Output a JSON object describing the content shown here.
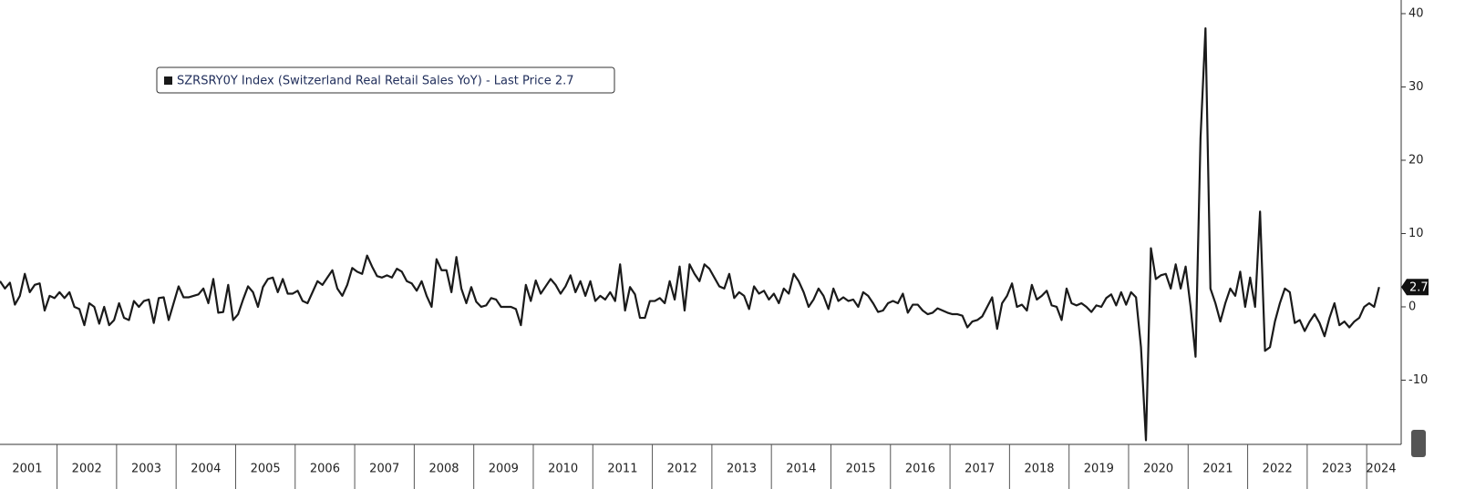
{
  "chart_data": {
    "type": "line",
    "categories": [
      "2001",
      null,
      null,
      null,
      null,
      null,
      null,
      null,
      null,
      null,
      null,
      null,
      "2002",
      null,
      null,
      null,
      null,
      null,
      null,
      null,
      null,
      null,
      null,
      null,
      "2003",
      null,
      null,
      null,
      null,
      null,
      null,
      null,
      null,
      null,
      null,
      null,
      "2004",
      null,
      null,
      null,
      null,
      null,
      null,
      null,
      null,
      null,
      null,
      null,
      "2005",
      null,
      null,
      null,
      null,
      null,
      null,
      null,
      null,
      null,
      null,
      null,
      "2006",
      null,
      null,
      null,
      null,
      null,
      null,
      null,
      null,
      null,
      null,
      null,
      "2007",
      null,
      null,
      null,
      null,
      null,
      null,
      null,
      null,
      null,
      null,
      null,
      "2008",
      null,
      null,
      null,
      null,
      null,
      null,
      null,
      null,
      null,
      null,
      null,
      "2009",
      null,
      null,
      null,
      null,
      null,
      null,
      null,
      null,
      null,
      null,
      null,
      "2010",
      null,
      null,
      null,
      null,
      null,
      null,
      null,
      null,
      null,
      null,
      null,
      "2011",
      null,
      null,
      null,
      null,
      null,
      null,
      null,
      null,
      null,
      null,
      null,
      "2012",
      null,
      null,
      null,
      null,
      null,
      null,
      null,
      null,
      null,
      null,
      null,
      "2013",
      null,
      null,
      null,
      null,
      null,
      null,
      null,
      null,
      null,
      null,
      null,
      "2014",
      null,
      null,
      null,
      null,
      null,
      null,
      null,
      null,
      null,
      null,
      null,
      "2015",
      null,
      null,
      null,
      null,
      null,
      null,
      null,
      null,
      null,
      null,
      null,
      "2016",
      null,
      null,
      null,
      null,
      null,
      null,
      null,
      null,
      null,
      null,
      null,
      "2017",
      null,
      null,
      null,
      null,
      null,
      null,
      null,
      null,
      null,
      null,
      null,
      "2018",
      null,
      null,
      null,
      null,
      null,
      null,
      null,
      null,
      null,
      null,
      null,
      "2019",
      null,
      null,
      null,
      null,
      null,
      null,
      null,
      null,
      null,
      null,
      null,
      "2020",
      null,
      null,
      null,
      null,
      null,
      null,
      null,
      null,
      null,
      null,
      null,
      "2021",
      null,
      null,
      null,
      null,
      null,
      null,
      null,
      null,
      null,
      null,
      null,
      "2022",
      null,
      null,
      null,
      null,
      null,
      null,
      null,
      null,
      null,
      null,
      null,
      "2023",
      null,
      null,
      null,
      null,
      null,
      null,
      null,
      null,
      null,
      null,
      null,
      "2024",
      null,
      null
    ],
    "series": [
      {
        "name": "SZRSRY0Y Index (Switzerland Real Retail Sales YoY) - Last Price 2.7",
        "color": "#1a1a1a",
        "values": [
          3.5,
          2.5,
          3.3,
          0.3,
          1.5,
          4.5,
          2,
          3,
          3.2,
          -0.5,
          1.5,
          1.2,
          2,
          1.2,
          2,
          0,
          -0.3,
          -2.5,
          0.5,
          0,
          -2.3,
          0,
          -2.5,
          -1.8,
          0.5,
          -1.5,
          -1.8,
          0.8,
          0,
          0.8,
          1,
          -2.2,
          1.2,
          1.3,
          -1.8,
          0.5,
          2.8,
          1.3,
          1.3,
          1.5,
          1.7,
          2.5,
          0.5,
          3.8,
          -0.8,
          -0.7,
          3,
          -1.8,
          -1,
          1,
          2.8,
          2,
          0,
          2.7,
          3.8,
          4,
          2,
          3.8,
          1.8,
          1.8,
          2.2,
          0.8,
          0.5,
          2,
          3.5,
          3,
          4,
          5,
          2.5,
          1.5,
          3,
          5.3,
          4.8,
          4.5,
          7,
          5.5,
          4.2,
          4,
          4.3,
          4,
          5.2,
          4.8,
          3.5,
          3.2,
          2.2,
          3.5,
          1.5,
          0,
          6.5,
          5,
          5,
          2,
          6.8,
          2.5,
          0.5,
          2.7,
          0.7,
          0,
          0.2,
          1.2,
          1,
          0,
          0,
          0,
          -0.3,
          -2.5,
          3,
          0.8,
          3.6,
          1.8,
          2.8,
          3.8,
          3,
          1.8,
          2.8,
          4.3,
          2,
          3.5,
          1.5,
          3.5,
          0.8,
          1.5,
          1,
          2,
          0.8,
          5.8,
          -0.5,
          2.7,
          1.7,
          -1.5,
          -1.5,
          0.8,
          0.8,
          1.2,
          0.5,
          3.5,
          1,
          5.5,
          -0.5,
          5.8,
          4.5,
          3.5,
          5.8,
          5.2,
          4,
          2.8,
          2.5,
          4.5,
          1.2,
          2,
          1.5,
          -0.3,
          2.8,
          1.8,
          2.2,
          1,
          1.8,
          0.5,
          2.5,
          1.8,
          4.5,
          3.5,
          2,
          0,
          1,
          2.5,
          1.5,
          -0.3,
          2.5,
          0.8,
          1.3,
          0.8,
          1,
          0,
          2,
          1.5,
          0.5,
          -0.7,
          -0.5,
          0.5,
          0.8,
          0.5,
          1.8,
          -0.8,
          0.3,
          0.3,
          -0.5,
          -1,
          -0.8,
          -0.2,
          -0.5,
          -0.8,
          -1,
          -1,
          -1.2,
          -2.8,
          -2,
          -1.8,
          -1.3,
          0,
          1.3,
          -3,
          0.5,
          1.5,
          3.2,
          0,
          0.3,
          -0.5,
          3,
          1,
          1.5,
          2.2,
          0.2,
          0,
          -1.8,
          2.5,
          0.5,
          0.2,
          0.5,
          0,
          -0.7,
          0.2,
          0,
          1.2,
          1.7,
          0.2,
          2,
          0.3,
          2,
          1.3,
          -5.5,
          -18.2,
          8,
          3.8,
          4.3,
          4.5,
          2.5,
          5.8,
          2.5,
          5.5,
          0,
          -6.8,
          23,
          38,
          2.5,
          0.5,
          -2,
          0.5,
          2.5,
          1.5,
          4.8,
          0,
          4,
          0,
          13,
          -6,
          -5.5,
          -2,
          0.5,
          2.5,
          2,
          -2.2,
          -1.8,
          -3.3,
          -2,
          -1,
          -2.2,
          -4,
          -1.5,
          0.5,
          -2.5,
          -2,
          -2.8,
          -2,
          -1.5,
          0,
          0.5,
          0,
          2.7
        ]
      }
    ],
    "ylim": [
      -18.76,
      41.86
    ],
    "yticks": [
      -10,
      0,
      10,
      20,
      30,
      40
    ],
    "y_axis_side": "right",
    "grid": false
  }
}
